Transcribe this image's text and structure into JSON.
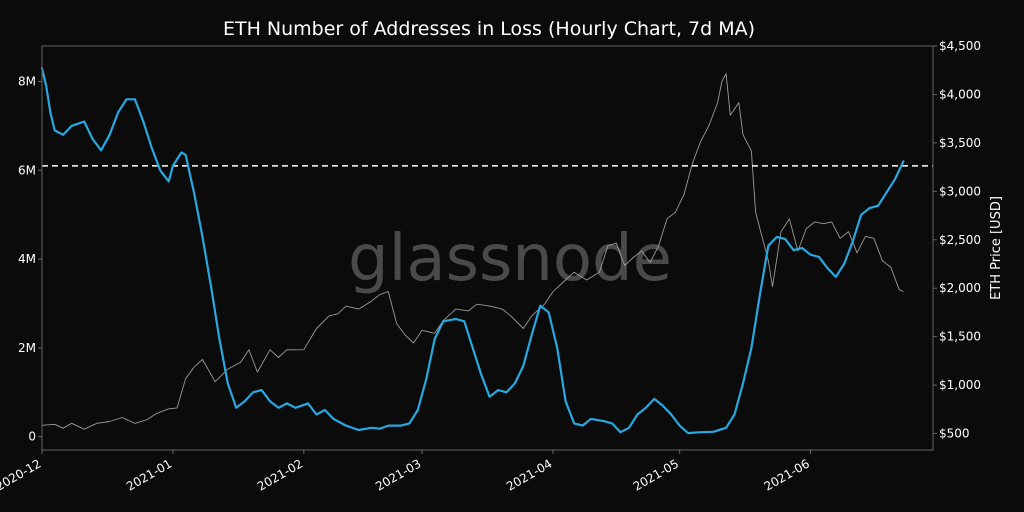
{
  "chart_data": {
    "type": "line",
    "title": "ETH Number of Addresses in Loss (Hourly Chart, 7d MA)",
    "xlabel": "",
    "ylabel": "",
    "y2label": "ETH Price [USD]",
    "watermark": "glassnode",
    "x_range": [
      "2020-12-01",
      "2021-06-30"
    ],
    "x_ticks": [
      "2020-12",
      "2021-01",
      "2021-02",
      "2021-03",
      "2021-04",
      "2021-05",
      "2021-06"
    ],
    "ylim": [
      -300000,
      8800000
    ],
    "y_ticks": [
      0,
      2000000,
      4000000,
      6000000,
      8000000
    ],
    "y_tick_labels": [
      "0",
      "2M",
      "4M",
      "6M",
      "8M"
    ],
    "y2lim": [
      330,
      4500
    ],
    "y2_ticks": [
      500,
      1000,
      1500,
      2000,
      2500,
      3000,
      3500,
      4000,
      4500
    ],
    "y2_tick_labels": [
      "$500",
      "$1,000",
      "$1,500",
      "$2,000",
      "$2,500",
      "$3,000",
      "$3,500",
      "$4,000",
      "$4,500"
    ],
    "reference_line": {
      "value": 6100000,
      "style": "dashed",
      "color": "#ffffff"
    },
    "grid": false,
    "colors": {
      "background": "#0b0b0b",
      "addresses": "#29a8e0",
      "price": "#9a9a9a",
      "text": "#ffffff",
      "axis": "#666666",
      "watermark": "#4a4a4a"
    },
    "series": [
      {
        "name": "Addresses in Loss (7d MA)",
        "axis": "left",
        "points": [
          [
            "2020-12-01",
            8300000
          ],
          [
            "2020-12-02",
            7900000
          ],
          [
            "2020-12-03",
            7300000
          ],
          [
            "2020-12-04",
            6900000
          ],
          [
            "2020-12-06",
            6800000
          ],
          [
            "2020-12-08",
            7000000
          ],
          [
            "2020-12-11",
            7100000
          ],
          [
            "2020-12-13",
            6700000
          ],
          [
            "2020-12-15",
            6450000
          ],
          [
            "2020-12-17",
            6800000
          ],
          [
            "2020-12-19",
            7300000
          ],
          [
            "2020-12-21",
            7600000
          ],
          [
            "2020-12-23",
            7600000
          ],
          [
            "2020-12-25",
            7100000
          ],
          [
            "2020-12-27",
            6500000
          ],
          [
            "2020-12-29",
            6000000
          ],
          [
            "2020-12-31",
            5750000
          ],
          [
            "2021-01-01",
            6100000
          ],
          [
            "2021-01-03",
            6400000
          ],
          [
            "2021-01-04",
            6350000
          ],
          [
            "2021-01-06",
            5500000
          ],
          [
            "2021-01-08",
            4500000
          ],
          [
            "2021-01-10",
            3400000
          ],
          [
            "2021-01-12",
            2200000
          ],
          [
            "2021-01-14",
            1200000
          ],
          [
            "2021-01-16",
            650000
          ],
          [
            "2021-01-18",
            800000
          ],
          [
            "2021-01-20",
            1000000
          ],
          [
            "2021-01-22",
            1050000
          ],
          [
            "2021-01-24",
            800000
          ],
          [
            "2021-01-26",
            650000
          ],
          [
            "2021-01-28",
            750000
          ],
          [
            "2021-01-30",
            650000
          ],
          [
            "2021-02-02",
            750000
          ],
          [
            "2021-02-04",
            500000
          ],
          [
            "2021-02-06",
            600000
          ],
          [
            "2021-02-08",
            400000
          ],
          [
            "2021-02-11",
            250000
          ],
          [
            "2021-02-14",
            150000
          ],
          [
            "2021-02-17",
            200000
          ],
          [
            "2021-02-19",
            180000
          ],
          [
            "2021-02-21",
            250000
          ],
          [
            "2021-02-24",
            250000
          ],
          [
            "2021-02-26",
            300000
          ],
          [
            "2021-02-28",
            600000
          ],
          [
            "2021-03-02",
            1300000
          ],
          [
            "2021-03-04",
            2200000
          ],
          [
            "2021-03-06",
            2600000
          ],
          [
            "2021-03-09",
            2650000
          ],
          [
            "2021-03-11",
            2600000
          ],
          [
            "2021-03-13",
            2000000
          ],
          [
            "2021-03-15",
            1400000
          ],
          [
            "2021-03-17",
            900000
          ],
          [
            "2021-03-19",
            1050000
          ],
          [
            "2021-03-21",
            1000000
          ],
          [
            "2021-03-23",
            1200000
          ],
          [
            "2021-03-25",
            1600000
          ],
          [
            "2021-03-27",
            2300000
          ],
          [
            "2021-03-29",
            2950000
          ],
          [
            "2021-03-31",
            2800000
          ],
          [
            "2021-04-02",
            2000000
          ],
          [
            "2021-04-04",
            800000
          ],
          [
            "2021-04-06",
            300000
          ],
          [
            "2021-04-08",
            250000
          ],
          [
            "2021-04-10",
            400000
          ],
          [
            "2021-04-13",
            350000
          ],
          [
            "2021-04-15",
            300000
          ],
          [
            "2021-04-17",
            100000
          ],
          [
            "2021-04-19",
            200000
          ],
          [
            "2021-04-21",
            500000
          ],
          [
            "2021-04-23",
            650000
          ],
          [
            "2021-04-25",
            850000
          ],
          [
            "2021-04-27",
            700000
          ],
          [
            "2021-04-29",
            500000
          ],
          [
            "2021-05-01",
            250000
          ],
          [
            "2021-05-03",
            80000
          ],
          [
            "2021-05-06",
            100000
          ],
          [
            "2021-05-09",
            110000
          ],
          [
            "2021-05-12",
            200000
          ],
          [
            "2021-05-14",
            500000
          ],
          [
            "2021-05-16",
            1200000
          ],
          [
            "2021-05-18",
            2000000
          ],
          [
            "2021-05-20",
            3200000
          ],
          [
            "2021-05-22",
            4300000
          ],
          [
            "2021-05-24",
            4500000
          ],
          [
            "2021-05-26",
            4450000
          ],
          [
            "2021-05-28",
            4200000
          ],
          [
            "2021-05-30",
            4250000
          ],
          [
            "2021-06-01",
            4100000
          ],
          [
            "2021-06-03",
            4050000
          ],
          [
            "2021-06-05",
            3800000
          ],
          [
            "2021-06-07",
            3600000
          ],
          [
            "2021-06-09",
            3900000
          ],
          [
            "2021-06-11",
            4400000
          ],
          [
            "2021-06-13",
            5000000
          ],
          [
            "2021-06-15",
            5150000
          ],
          [
            "2021-06-17",
            5200000
          ],
          [
            "2021-06-19",
            5500000
          ],
          [
            "2021-06-21",
            5800000
          ],
          [
            "2021-06-23",
            6200000
          ]
        ]
      },
      {
        "name": "ETH Price [USD]",
        "axis": "right",
        "points": [
          [
            "2020-12-01",
            600
          ],
          [
            "2020-12-04",
            580
          ],
          [
            "2020-12-06",
            570
          ],
          [
            "2020-12-08",
            590
          ],
          [
            "2020-12-11",
            560
          ],
          [
            "2020-12-14",
            590
          ],
          [
            "2020-12-17",
            640
          ],
          [
            "2020-12-20",
            650
          ],
          [
            "2020-12-23",
            620
          ],
          [
            "2020-12-26",
            630
          ],
          [
            "2020-12-28",
            720
          ],
          [
            "2020-12-31",
            740
          ],
          [
            "2021-01-02",
            780
          ],
          [
            "2021-01-04",
            1050
          ],
          [
            "2021-01-06",
            1200
          ],
          [
            "2021-01-08",
            1250
          ],
          [
            "2021-01-11",
            1050
          ],
          [
            "2021-01-14",
            1150
          ],
          [
            "2021-01-17",
            1250
          ],
          [
            "2021-01-19",
            1350
          ],
          [
            "2021-01-21",
            1150
          ],
          [
            "2021-01-24",
            1350
          ],
          [
            "2021-01-26",
            1300
          ],
          [
            "2021-01-28",
            1350
          ],
          [
            "2021-01-30",
            1380
          ],
          [
            "2021-02-01",
            1350
          ],
          [
            "2021-02-04",
            1600
          ],
          [
            "2021-02-07",
            1700
          ],
          [
            "2021-02-09",
            1750
          ],
          [
            "2021-02-11",
            1800
          ],
          [
            "2021-02-14",
            1800
          ],
          [
            "2021-02-17",
            1850
          ],
          [
            "2021-02-19",
            1950
          ],
          [
            "2021-02-21",
            1950
          ],
          [
            "2021-02-23",
            1650
          ],
          [
            "2021-02-25",
            1500
          ],
          [
            "2021-02-27",
            1450
          ],
          [
            "2021-03-01",
            1550
          ],
          [
            "2021-03-04",
            1550
          ],
          [
            "2021-03-06",
            1650
          ],
          [
            "2021-03-09",
            1800
          ],
          [
            "2021-03-12",
            1750
          ],
          [
            "2021-03-14",
            1850
          ],
          [
            "2021-03-17",
            1800
          ],
          [
            "2021-03-20",
            1800
          ],
          [
            "2021-03-22",
            1700
          ],
          [
            "2021-03-25",
            1600
          ],
          [
            "2021-03-27",
            1700
          ],
          [
            "2021-03-30",
            1850
          ],
          [
            "2021-04-01",
            1950
          ],
          [
            "2021-04-04",
            2100
          ],
          [
            "2021-04-06",
            2150
          ],
          [
            "2021-04-09",
            2100
          ],
          [
            "2021-04-12",
            2150
          ],
          [
            "2021-04-14",
            2450
          ],
          [
            "2021-04-16",
            2450
          ],
          [
            "2021-04-18",
            2250
          ],
          [
            "2021-04-20",
            2300
          ],
          [
            "2021-04-22",
            2400
          ],
          [
            "2021-04-24",
            2250
          ],
          [
            "2021-04-26",
            2450
          ],
          [
            "2021-04-28",
            2700
          ],
          [
            "2021-04-30",
            2800
          ],
          [
            "2021-05-02",
            2950
          ],
          [
            "2021-05-04",
            3300
          ],
          [
            "2021-05-06",
            3500
          ],
          [
            "2021-05-08",
            3700
          ],
          [
            "2021-05-10",
            3900
          ],
          [
            "2021-05-11",
            4150
          ],
          [
            "2021-05-12",
            4200
          ],
          [
            "2021-05-13",
            3800
          ],
          [
            "2021-05-15",
            3900
          ],
          [
            "2021-05-16",
            3600
          ],
          [
            "2021-05-18",
            3400
          ],
          [
            "2021-05-19",
            2800
          ],
          [
            "2021-05-20",
            2600
          ],
          [
            "2021-05-22",
            2300
          ],
          [
            "2021-05-23",
            2000
          ],
          [
            "2021-05-25",
            2600
          ],
          [
            "2021-05-27",
            2700
          ],
          [
            "2021-05-29",
            2400
          ],
          [
            "2021-05-31",
            2600
          ],
          [
            "2021-06-02",
            2700
          ],
          [
            "2021-06-04",
            2650
          ],
          [
            "2021-06-06",
            2700
          ],
          [
            "2021-06-08",
            2500
          ],
          [
            "2021-06-10",
            2600
          ],
          [
            "2021-06-12",
            2350
          ],
          [
            "2021-06-14",
            2550
          ],
          [
            "2021-06-16",
            2500
          ],
          [
            "2021-06-18",
            2300
          ],
          [
            "2021-06-20",
            2200
          ],
          [
            "2021-06-22",
            2000
          ],
          [
            "2021-06-23",
            1950
          ]
        ]
      }
    ]
  }
}
